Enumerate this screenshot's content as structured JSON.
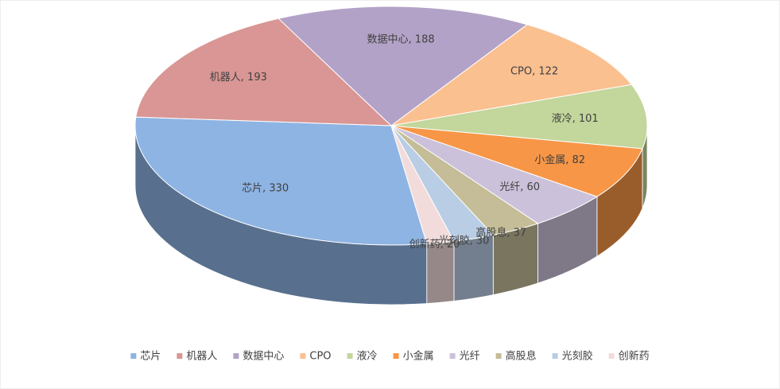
{
  "chart_data": {
    "type": "pie",
    "categories": [
      "芯片",
      "机器人",
      "数据中心",
      "CPO",
      "液冷",
      "小金属",
      "光纤",
      "高股息",
      "光刻胶",
      "创新药"
    ],
    "values": [
      330,
      193,
      188,
      122,
      101,
      82,
      60,
      37,
      30,
      20
    ],
    "value_labels": [
      "芯片, 330",
      "机器人, 193",
      "数据中心, 188",
      "CPO, 122",
      "液冷, 101",
      "小金属, 82",
      "光纤, 60",
      "高股息, 37",
      "光刻胶, 30",
      "创新药, 20"
    ],
    "colors": [
      "#8eb4e3",
      "#d99694",
      "#b3a2c7",
      "#fac090",
      "#c3d69b",
      "#f79646",
      "#ccc1da",
      "#c4bd97",
      "#b9cde5",
      "#f2dcdb"
    ],
    "legend": "bottom"
  }
}
